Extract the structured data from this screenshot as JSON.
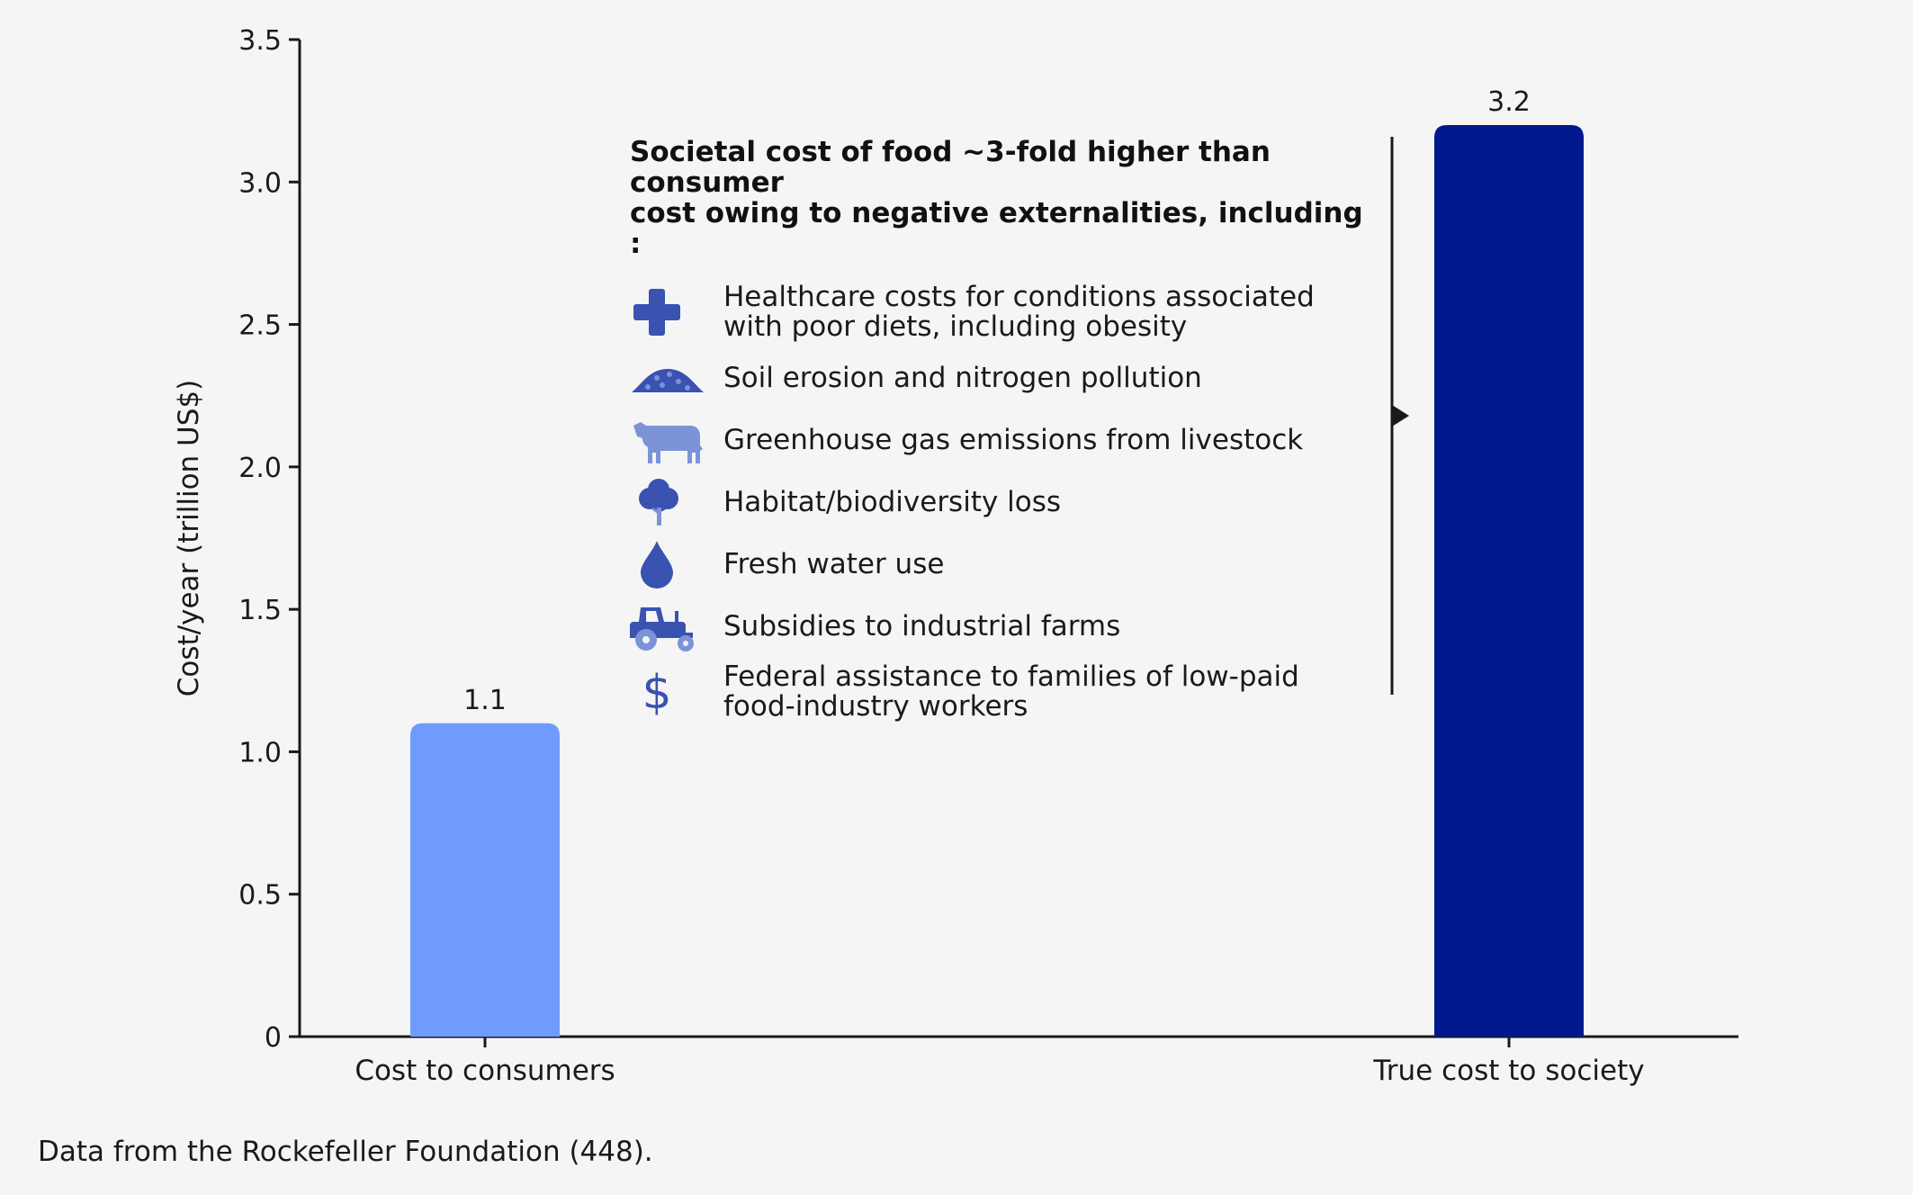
{
  "chart_data": {
    "type": "bar",
    "categories": [
      "Cost to consumers",
      "True cost to society"
    ],
    "values": [
      1.1,
      3.2
    ],
    "value_labels": [
      "1.1",
      "3.2"
    ],
    "title": "",
    "xlabel": "",
    "ylabel": "Cost/year (trillion US$)",
    "ylim": [
      0,
      3.5
    ],
    "yticks": [
      0,
      0.5,
      1.0,
      1.5,
      2.0,
      2.5,
      3.0,
      3.5
    ],
    "ytick_labels": [
      "0",
      "0.5",
      "1.0",
      "1.5",
      "2.0",
      "2.5",
      "3.0",
      "3.5"
    ],
    "bar_colors": [
      "#6f9bff",
      "#00198c"
    ],
    "grid": false,
    "legend": "none"
  },
  "annotation": {
    "title_line1": "Societal cost of food ~3-fold higher than consumer",
    "title_line2": "cost owing to negative externalities, including :",
    "items": [
      {
        "icon": "cross-icon",
        "line1": "Healthcare costs for conditions associated",
        "line2": "with poor diets, including obesity"
      },
      {
        "icon": "soil-pile-icon",
        "line1": "Soil erosion and nitrogen pollution",
        "line2": ""
      },
      {
        "icon": "cow-icon",
        "line1": "Greenhouse gas emissions from livestock",
        "line2": ""
      },
      {
        "icon": "tree-icon",
        "line1": "Habitat/biodiversity loss",
        "line2": ""
      },
      {
        "icon": "water-drop-icon",
        "line1": "Fresh water use",
        "line2": ""
      },
      {
        "icon": "tractor-icon",
        "line1": "Subsidies to industrial farms",
        "line2": ""
      },
      {
        "icon": "dollar-icon",
        "line1": "Federal assistance to families of low-paid",
        "line2": "food-industry workers"
      }
    ],
    "icon_color": "#3a52b0"
  },
  "footnote": "Data from the Rockefeller Foundation (448)."
}
